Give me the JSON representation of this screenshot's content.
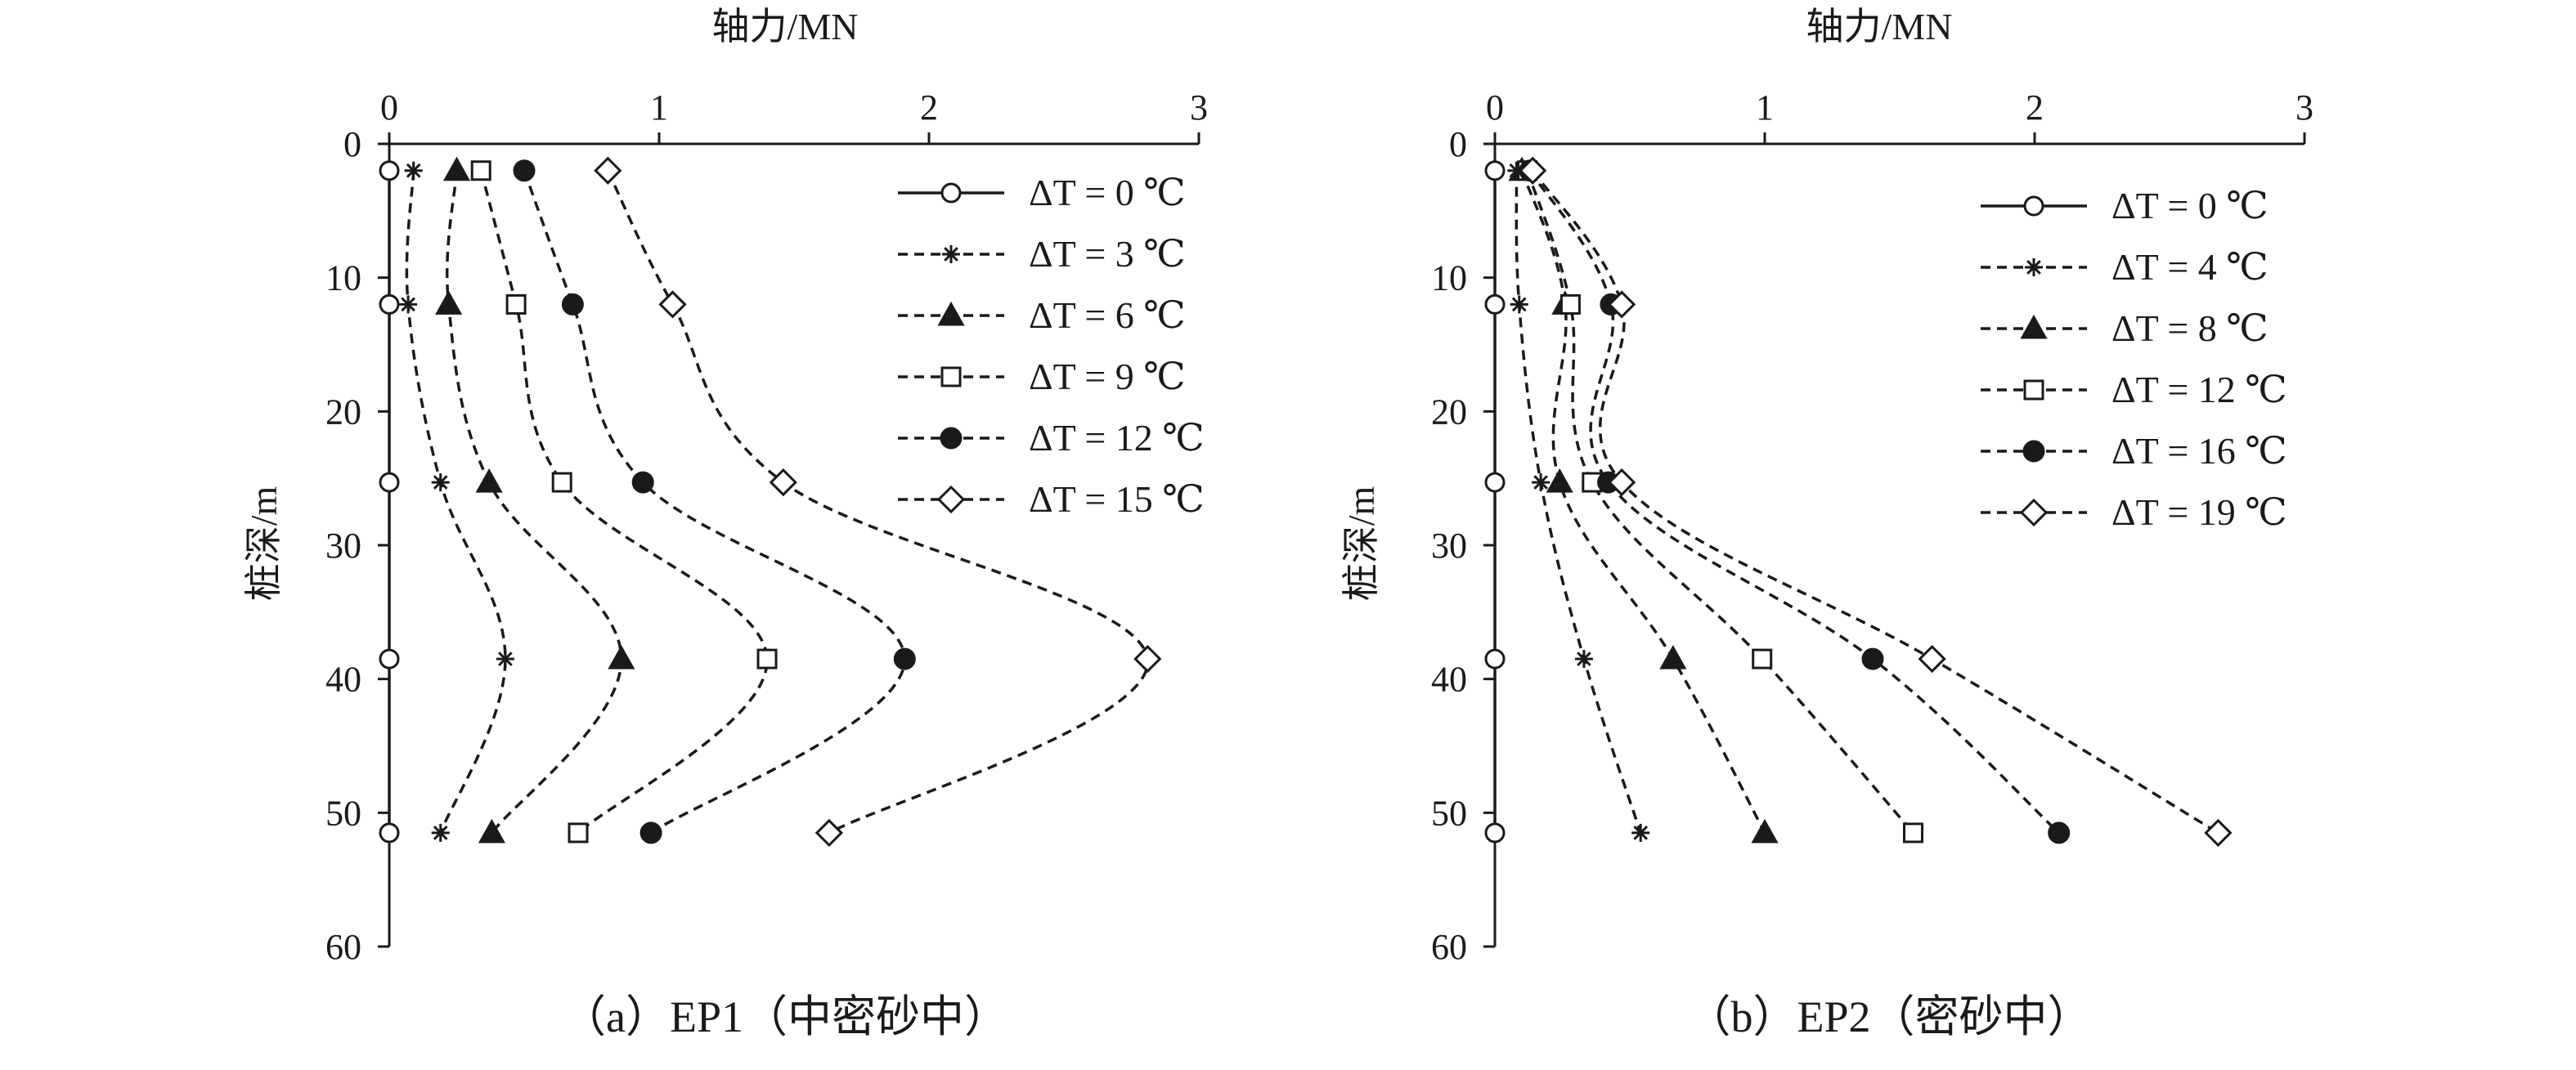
{
  "chart_data": [
    {
      "type": "line",
      "caption": "（a）EP1（中密砂中）",
      "xlabel": "轴力/MN",
      "ylabel": "桩深/m",
      "xlim": [
        0,
        3
      ],
      "ylim": [
        60,
        0
      ],
      "x_ticks": [
        "0",
        "1",
        "2",
        "3"
      ],
      "y_ticks": [
        "0",
        "10",
        "20",
        "30",
        "40",
        "50",
        "60"
      ],
      "x_axis_position": "top",
      "grid": false,
      "legend_position": "top-right",
      "depths": [
        2,
        12,
        25.3,
        38.5,
        51.5
      ],
      "series": [
        {
          "name": "ΔT = 0 ℃",
          "marker": "circle-open",
          "line": "solid",
          "values": [
            0.0,
            0.0,
            0.0,
            0.0,
            0.0
          ]
        },
        {
          "name": "ΔT = 3 ℃",
          "marker": "asterisk",
          "line": "dashed",
          "values": [
            0.09,
            0.07,
            0.19,
            0.43,
            0.19
          ]
        },
        {
          "name": "ΔT = 6 ℃",
          "marker": "triangle-filled",
          "line": "dashed",
          "values": [
            0.25,
            0.22,
            0.37,
            0.86,
            0.38
          ]
        },
        {
          "name": "ΔT = 9 ℃",
          "marker": "square-open",
          "line": "dashed",
          "values": [
            0.34,
            0.47,
            0.64,
            1.4,
            0.7
          ]
        },
        {
          "name": "ΔT = 12 ℃",
          "marker": "circle-filled",
          "line": "dashed",
          "values": [
            0.5,
            0.68,
            0.94,
            1.91,
            0.97
          ]
        },
        {
          "name": "ΔT = 15 ℃",
          "marker": "diamond-open",
          "line": "dashed",
          "values": [
            0.81,
            1.05,
            1.46,
            2.81,
            1.63
          ]
        }
      ]
    },
    {
      "type": "line",
      "caption": "（b）EP2（密砂中）",
      "xlabel": "轴力/MN",
      "ylabel": "桩深/m",
      "xlim": [
        0,
        3
      ],
      "ylim": [
        60,
        0
      ],
      "x_ticks": [
        "0",
        "1",
        "2",
        "3"
      ],
      "y_ticks": [
        "0",
        "10",
        "20",
        "30",
        "40",
        "50",
        "60"
      ],
      "x_axis_position": "top",
      "grid": false,
      "legend_position": "top-right",
      "depths": [
        2,
        12,
        25.3,
        38.5,
        51.5
      ],
      "series": [
        {
          "name": "ΔT = 0 ℃",
          "marker": "circle-open",
          "line": "solid",
          "values": [
            0.0,
            0.0,
            0.0,
            0.0,
            0.0
          ]
        },
        {
          "name": "ΔT = 4 ℃",
          "marker": "asterisk",
          "line": "dashed",
          "values": [
            0.08,
            0.09,
            0.17,
            0.33,
            0.54
          ]
        },
        {
          "name": "ΔT = 8 ℃",
          "marker": "triangle-filled",
          "line": "dashed",
          "values": [
            0.1,
            0.26,
            0.24,
            0.66,
            1.0
          ]
        },
        {
          "name": "ΔT = 12 ℃",
          "marker": "square-open",
          "line": "dashed",
          "values": [
            0.12,
            0.28,
            0.36,
            0.99,
            1.55
          ]
        },
        {
          "name": "ΔT = 16 ℃",
          "marker": "circle-filled",
          "line": "dashed",
          "values": [
            0.13,
            0.43,
            0.42,
            1.4,
            2.09
          ]
        },
        {
          "name": "ΔT = 19 ℃",
          "marker": "diamond-open",
          "line": "dashed",
          "values": [
            0.14,
            0.47,
            0.47,
            1.62,
            2.68
          ]
        }
      ]
    }
  ]
}
